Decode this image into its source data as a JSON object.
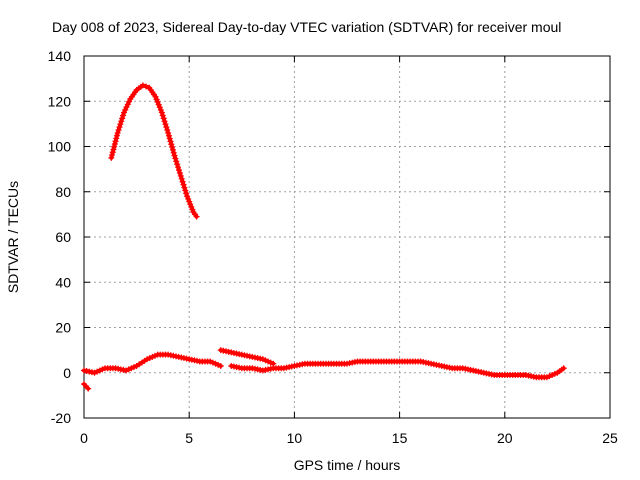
{
  "chart_data": {
    "type": "scatter",
    "title": "Day 008 of 2023, Sidereal Day-to-day VTEC variation (SDTVAR) for receiver moul",
    "xlabel": "GPS time / hours",
    "ylabel": "SDTVAR / TECUs",
    "xlim": [
      0,
      25
    ],
    "ylim": [
      -20,
      140
    ],
    "x_ticks": [
      0,
      5,
      10,
      15,
      20,
      25
    ],
    "y_ticks": [
      -20,
      0,
      20,
      40,
      60,
      80,
      100,
      120,
      140
    ],
    "x_tick_labels": [
      "0",
      "5",
      "10",
      "15",
      "20",
      "25"
    ],
    "y_tick_labels": [
      "-20",
      "0",
      "20",
      "40",
      "60",
      "80",
      "100",
      "120",
      "140"
    ],
    "grid": true,
    "marker": "+",
    "series": [
      {
        "name": "SDTVAR",
        "color": "#ff0000",
        "segments": [
          {
            "x": [
              1.3,
              1.6,
              1.9,
              2.2,
              2.5,
              2.8,
              3.1,
              3.4,
              3.7,
              4.0,
              4.3,
              4.6,
              4.9,
              5.2,
              5.35
            ],
            "y": [
              95,
              106,
              115,
              121,
              125,
              127,
              126,
              122,
              115,
              106,
              96,
              87,
              78,
              71,
              69
            ]
          },
          {
            "x": [
              0.0,
              0.5,
              1.0,
              1.5,
              2.0,
              2.5,
              3.0,
              3.5,
              4.0,
              4.5,
              5.0,
              5.5,
              6.0,
              6.5
            ],
            "y": [
              1,
              0,
              2,
              2,
              1,
              3,
              6,
              8,
              8,
              7,
              6,
              5,
              5,
              3
            ]
          },
          {
            "x": [
              6.5,
              7.0,
              7.5,
              8.0,
              8.5,
              9.0
            ],
            "y": [
              10,
              9,
              8,
              7,
              6,
              4
            ]
          },
          {
            "x": [
              7.0,
              7.5,
              8.0,
              8.5,
              9.0,
              9.5,
              10.0,
              10.5,
              11.0,
              11.5,
              12.0,
              12.5,
              13.0,
              13.5,
              14.0,
              14.5,
              15.0,
              15.5,
              16.0,
              16.5,
              17.0,
              17.5,
              18.0,
              18.5,
              19.0,
              19.5,
              20.0,
              20.5,
              21.0,
              21.5,
              22.0,
              22.5,
              22.8
            ],
            "y": [
              3,
              2,
              2,
              1,
              2,
              2,
              3,
              4,
              4,
              4,
              4,
              4,
              5,
              5,
              5,
              5,
              5,
              5,
              5,
              4,
              3,
              2,
              2,
              1,
              0,
              -1,
              -1,
              -1,
              -1,
              -2,
              -2,
              0,
              2
            ]
          },
          {
            "x": [
              0.0,
              0.1,
              0.2
            ],
            "y": [
              -5,
              -6,
              -7
            ]
          }
        ]
      }
    ]
  }
}
